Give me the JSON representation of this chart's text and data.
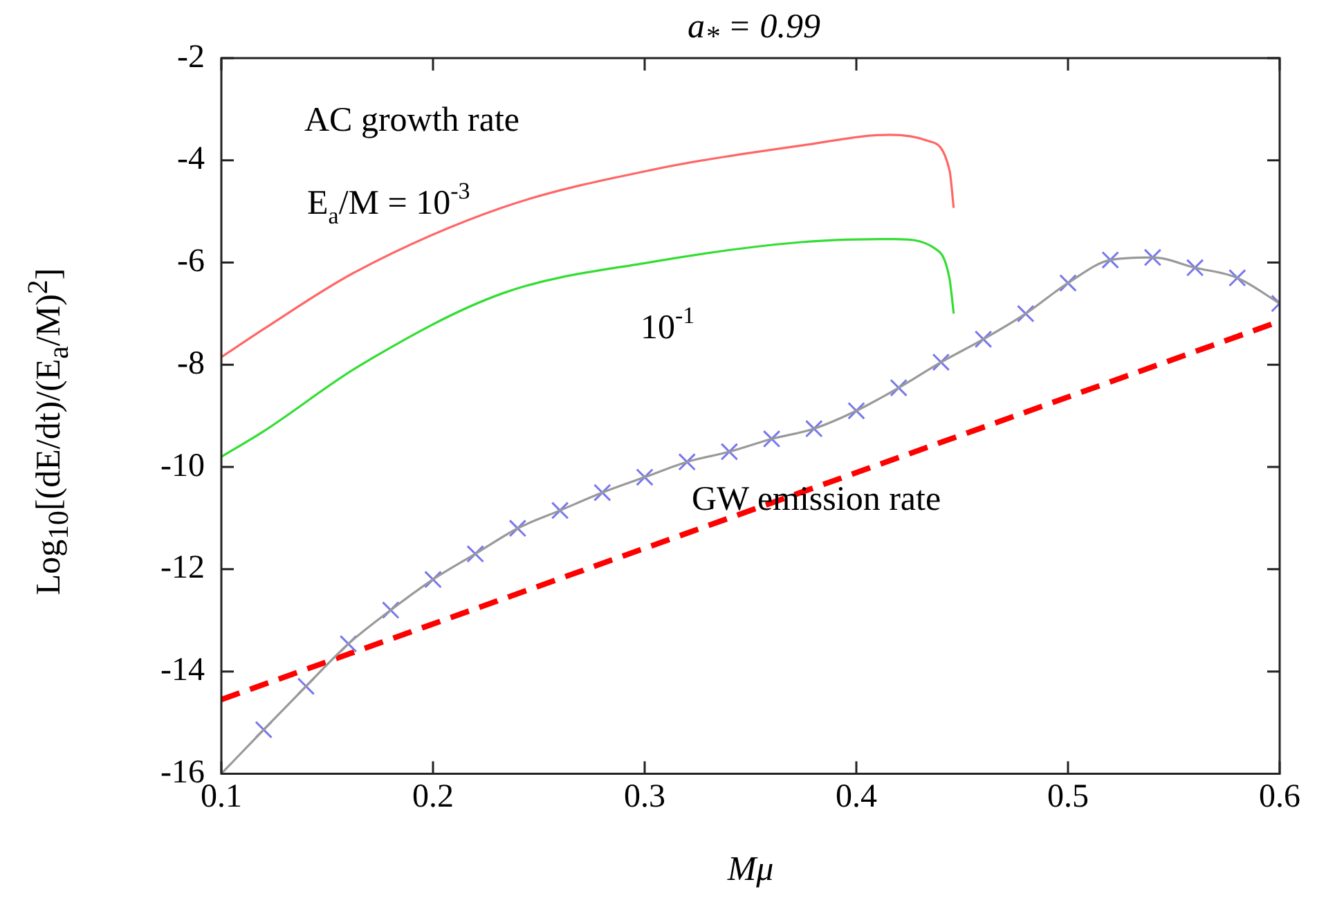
{
  "chart_data": {
    "type": "line",
    "title": "a$_{*}$ = 0.99",
    "xlabel": "Mμ",
    "ylabel": "Log$_{10}$[(dE/dt)/(E$_{a}$/M)$^{2}$]",
    "xlim": [
      0.1,
      0.6
    ],
    "xticks": [
      0.1,
      0.2,
      0.3,
      0.4,
      0.5,
      0.6
    ],
    "ylim": [
      -16,
      -2
    ],
    "yticks": [
      -16,
      -14,
      -12,
      -10,
      -8,
      -6,
      -4,
      -2
    ],
    "grid": false,
    "legend": false,
    "annotations": [
      "AC growth rate",
      "E$_{a}$/M = 10$^{-3}$",
      "10$^{-1}$",
      "GW emission rate"
    ],
    "series": [
      {
        "type": "line",
        "color": "#ff6666",
        "marker": "none",
        "line_style": "solid",
        "x": [
          0.1,
          0.12,
          0.163,
          0.233,
          0.303,
          0.374,
          0.416,
          0.434,
          0.444,
          0.446
        ],
        "values": [
          -7.85,
          -7.3,
          -6.19,
          -4.92,
          -4.19,
          -3.71,
          -3.5,
          -3.62,
          -4.19,
          -4.93
        ]
      },
      {
        "type": "line",
        "color": "#33dd33",
        "marker": "none",
        "line_style": "solid",
        "x": [
          0.1,
          0.12,
          0.166,
          0.233,
          0.303,
          0.374,
          0.418,
          0.437,
          0.444,
          0.446
        ],
        "values": [
          -9.8,
          -9.3,
          -8.0,
          -6.6,
          -5.99,
          -5.6,
          -5.54,
          -5.72,
          -6.31,
          -7.0
        ]
      },
      {
        "type": "line",
        "color": "#999999",
        "marker": "none",
        "line_style": "solid",
        "x": [
          0.1,
          0.12,
          0.14,
          0.16,
          0.18,
          0.2,
          0.22,
          0.24,
          0.26,
          0.28,
          0.3,
          0.32,
          0.34,
          0.36,
          0.38,
          0.4,
          0.42,
          0.44,
          0.46,
          0.48,
          0.5,
          0.52,
          0.54,
          0.56,
          0.58,
          0.6
        ],
        "values": [
          -16,
          -15.14,
          -14.29,
          -13.46,
          -12.8,
          -12.2,
          -11.7,
          -11.2,
          -10.85,
          -10.5,
          -10.2,
          -9.9,
          -9.7,
          -9.45,
          -9.25,
          -8.9,
          -8.45,
          -7.95,
          -7.5,
          -7.0,
          -6.4,
          -5.95,
          -5.9,
          -6.1,
          -6.3,
          -6.8
        ]
      },
      {
        "type": "scatter",
        "color": "#7777ee",
        "marker": "cross",
        "x": [
          0.12,
          0.14,
          0.16,
          0.18,
          0.2,
          0.22,
          0.24,
          0.26,
          0.28,
          0.3,
          0.32,
          0.34,
          0.36,
          0.38,
          0.4,
          0.42,
          0.44,
          0.46,
          0.48,
          0.5,
          0.52,
          0.54,
          0.56,
          0.58,
          0.6
        ],
        "values": [
          -15.14,
          -14.29,
          -13.46,
          -12.8,
          -12.2,
          -11.7,
          -11.2,
          -10.85,
          -10.5,
          -10.2,
          -9.9,
          -9.7,
          -9.45,
          -9.25,
          -8.9,
          -8.45,
          -7.95,
          -7.5,
          -7.0,
          -6.4,
          -5.95,
          -5.9,
          -6.1,
          -6.3,
          -6.8
        ]
      },
      {
        "type": "line",
        "color": "#ff0000",
        "marker": "none",
        "line_style": "dashed",
        "x": [
          0.1,
          0.6
        ],
        "values": [
          -14.55,
          -7.15
        ]
      }
    ]
  }
}
